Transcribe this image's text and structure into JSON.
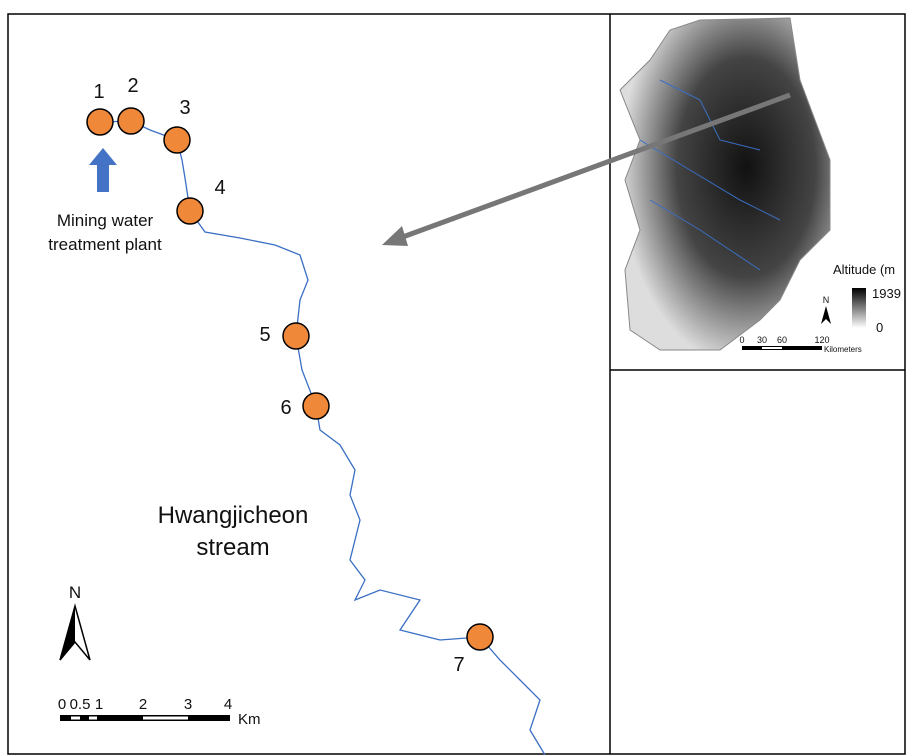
{
  "main_map": {
    "sites": [
      "1",
      "2",
      "3",
      "4",
      "5",
      "6",
      "7"
    ],
    "plant_label": [
      "Mining water",
      "treatment plant"
    ],
    "stream_label": [
      "Hwangjicheon",
      "stream"
    ],
    "north": "N",
    "scale": {
      "ticks": [
        "0",
        "0.5",
        "1",
        "2",
        "3",
        "4"
      ],
      "unit": "Km"
    }
  },
  "inset": {
    "legend_title": "Altitude (m",
    "legend_max": "1939",
    "legend_min": "0",
    "north": "N",
    "scale": {
      "ticks": [
        "0",
        "30",
        "60",
        "120"
      ],
      "unit": "Kilometers"
    }
  }
}
